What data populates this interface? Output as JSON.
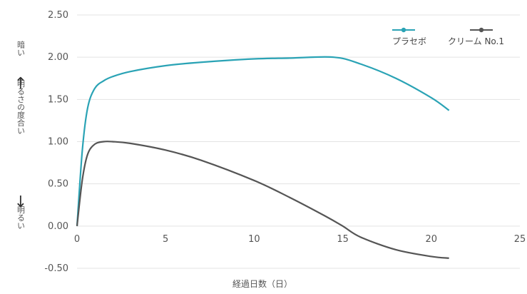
{
  "chart_data": {
    "type": "line",
    "xlabel": "経過日数（日）",
    "ylabel": {
      "top": "暗い",
      "middle": "明るさの度合い",
      "bottom": "明るい",
      "arrow_up": "↑",
      "arrow_down": "↓"
    },
    "xlim": [
      0,
      25
    ],
    "ylim": [
      -0.5,
      2.5
    ],
    "x_ticks": [
      "0",
      "5",
      "10",
      "15",
      "20",
      "25"
    ],
    "y_ticks": [
      "2.50",
      "2.00",
      "1.50",
      "1.00",
      "0.50",
      "0.00",
      "-0.50"
    ],
    "grid": "horizontal",
    "legend_position": "top-right",
    "series": [
      {
        "name": "プラセボ",
        "color": "#2aa3b5",
        "x": [
          0,
          0.3,
          0.6,
          1,
          1.5,
          2,
          3,
          5,
          7,
          10,
          12,
          14.5,
          16,
          18,
          20,
          21
        ],
        "y": [
          0,
          0.9,
          1.4,
          1.63,
          1.72,
          1.77,
          1.83,
          1.9,
          1.94,
          1.98,
          1.99,
          2.0,
          1.92,
          1.75,
          1.52,
          1.37
        ]
      },
      {
        "name": "クリーム No.1",
        "color": "#555555",
        "x": [
          0,
          0.3,
          0.6,
          1,
          1.5,
          2,
          3,
          5,
          7,
          10,
          12,
          14,
          15,
          16,
          18,
          20,
          21
        ],
        "y": [
          0,
          0.55,
          0.85,
          0.97,
          1.0,
          1.0,
          0.98,
          0.9,
          0.78,
          0.54,
          0.34,
          0.12,
          0.0,
          -0.13,
          -0.28,
          -0.36,
          -0.38
        ]
      }
    ]
  }
}
